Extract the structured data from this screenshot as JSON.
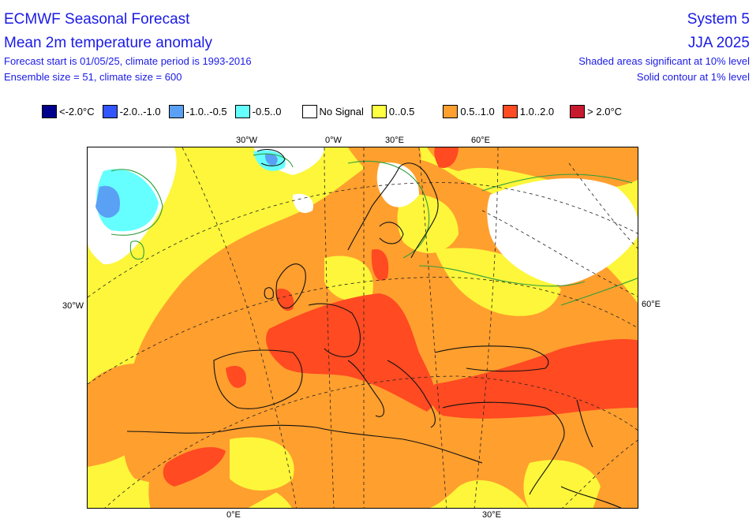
{
  "header": {
    "title": "ECMWF Seasonal Forecast",
    "subtitle": "Mean 2m temperature anomaly",
    "line3": "Forecast start is 01/05/25, climate period is 1993-2016",
    "line4": "Ensemble size = 51, climate size = 600",
    "system": "System 5",
    "season": "JJA 2025",
    "note_shaded": "Shaded areas significant at 10% level",
    "note_contour": "Solid contour at 1% level"
  },
  "legend": [
    {
      "label": "<-2.0°C",
      "color": "#00008c"
    },
    {
      "label": "-2.0..-1.0",
      "color": "#3355ff"
    },
    {
      "label": "-1.0..-0.5",
      "color": "#5aa0f5"
    },
    {
      "label": "-0.5..0",
      "color": "#66ffff"
    },
    {
      "label": "No Signal",
      "color": "#ffffff"
    },
    {
      "label": "0..0.5",
      "color": "#ffff44"
    },
    {
      "label": "0.5..1.0",
      "color": "#ff9f2e"
    },
    {
      "label": "1.0..2.0",
      "color": "#ff4a22"
    },
    {
      "label": "> 2.0°C",
      "color": "#c81a2e"
    }
  ],
  "map_labels": {
    "top_30w": "30°W",
    "top_0w": "0°W",
    "top_30e": "30°E",
    "top_60e": "60°E",
    "left_30w": "30°W",
    "right_60e": "60°E",
    "bottom_0e": "0°E",
    "bottom_30e": "30°E"
  }
}
